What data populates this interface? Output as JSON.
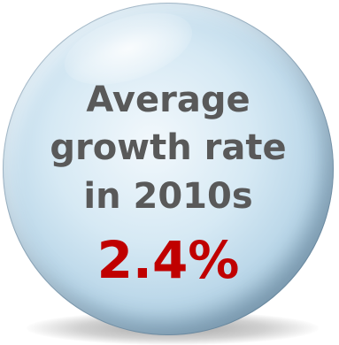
{
  "badge": {
    "lines": [
      "Average",
      "growth rate",
      "in 2010s"
    ],
    "value": "2.4%",
    "colors": {
      "label_text": "#595959",
      "value_text": "#c00000",
      "sphere_light": "#d6e9f4",
      "sphere_dark": "#6a90a8"
    }
  }
}
